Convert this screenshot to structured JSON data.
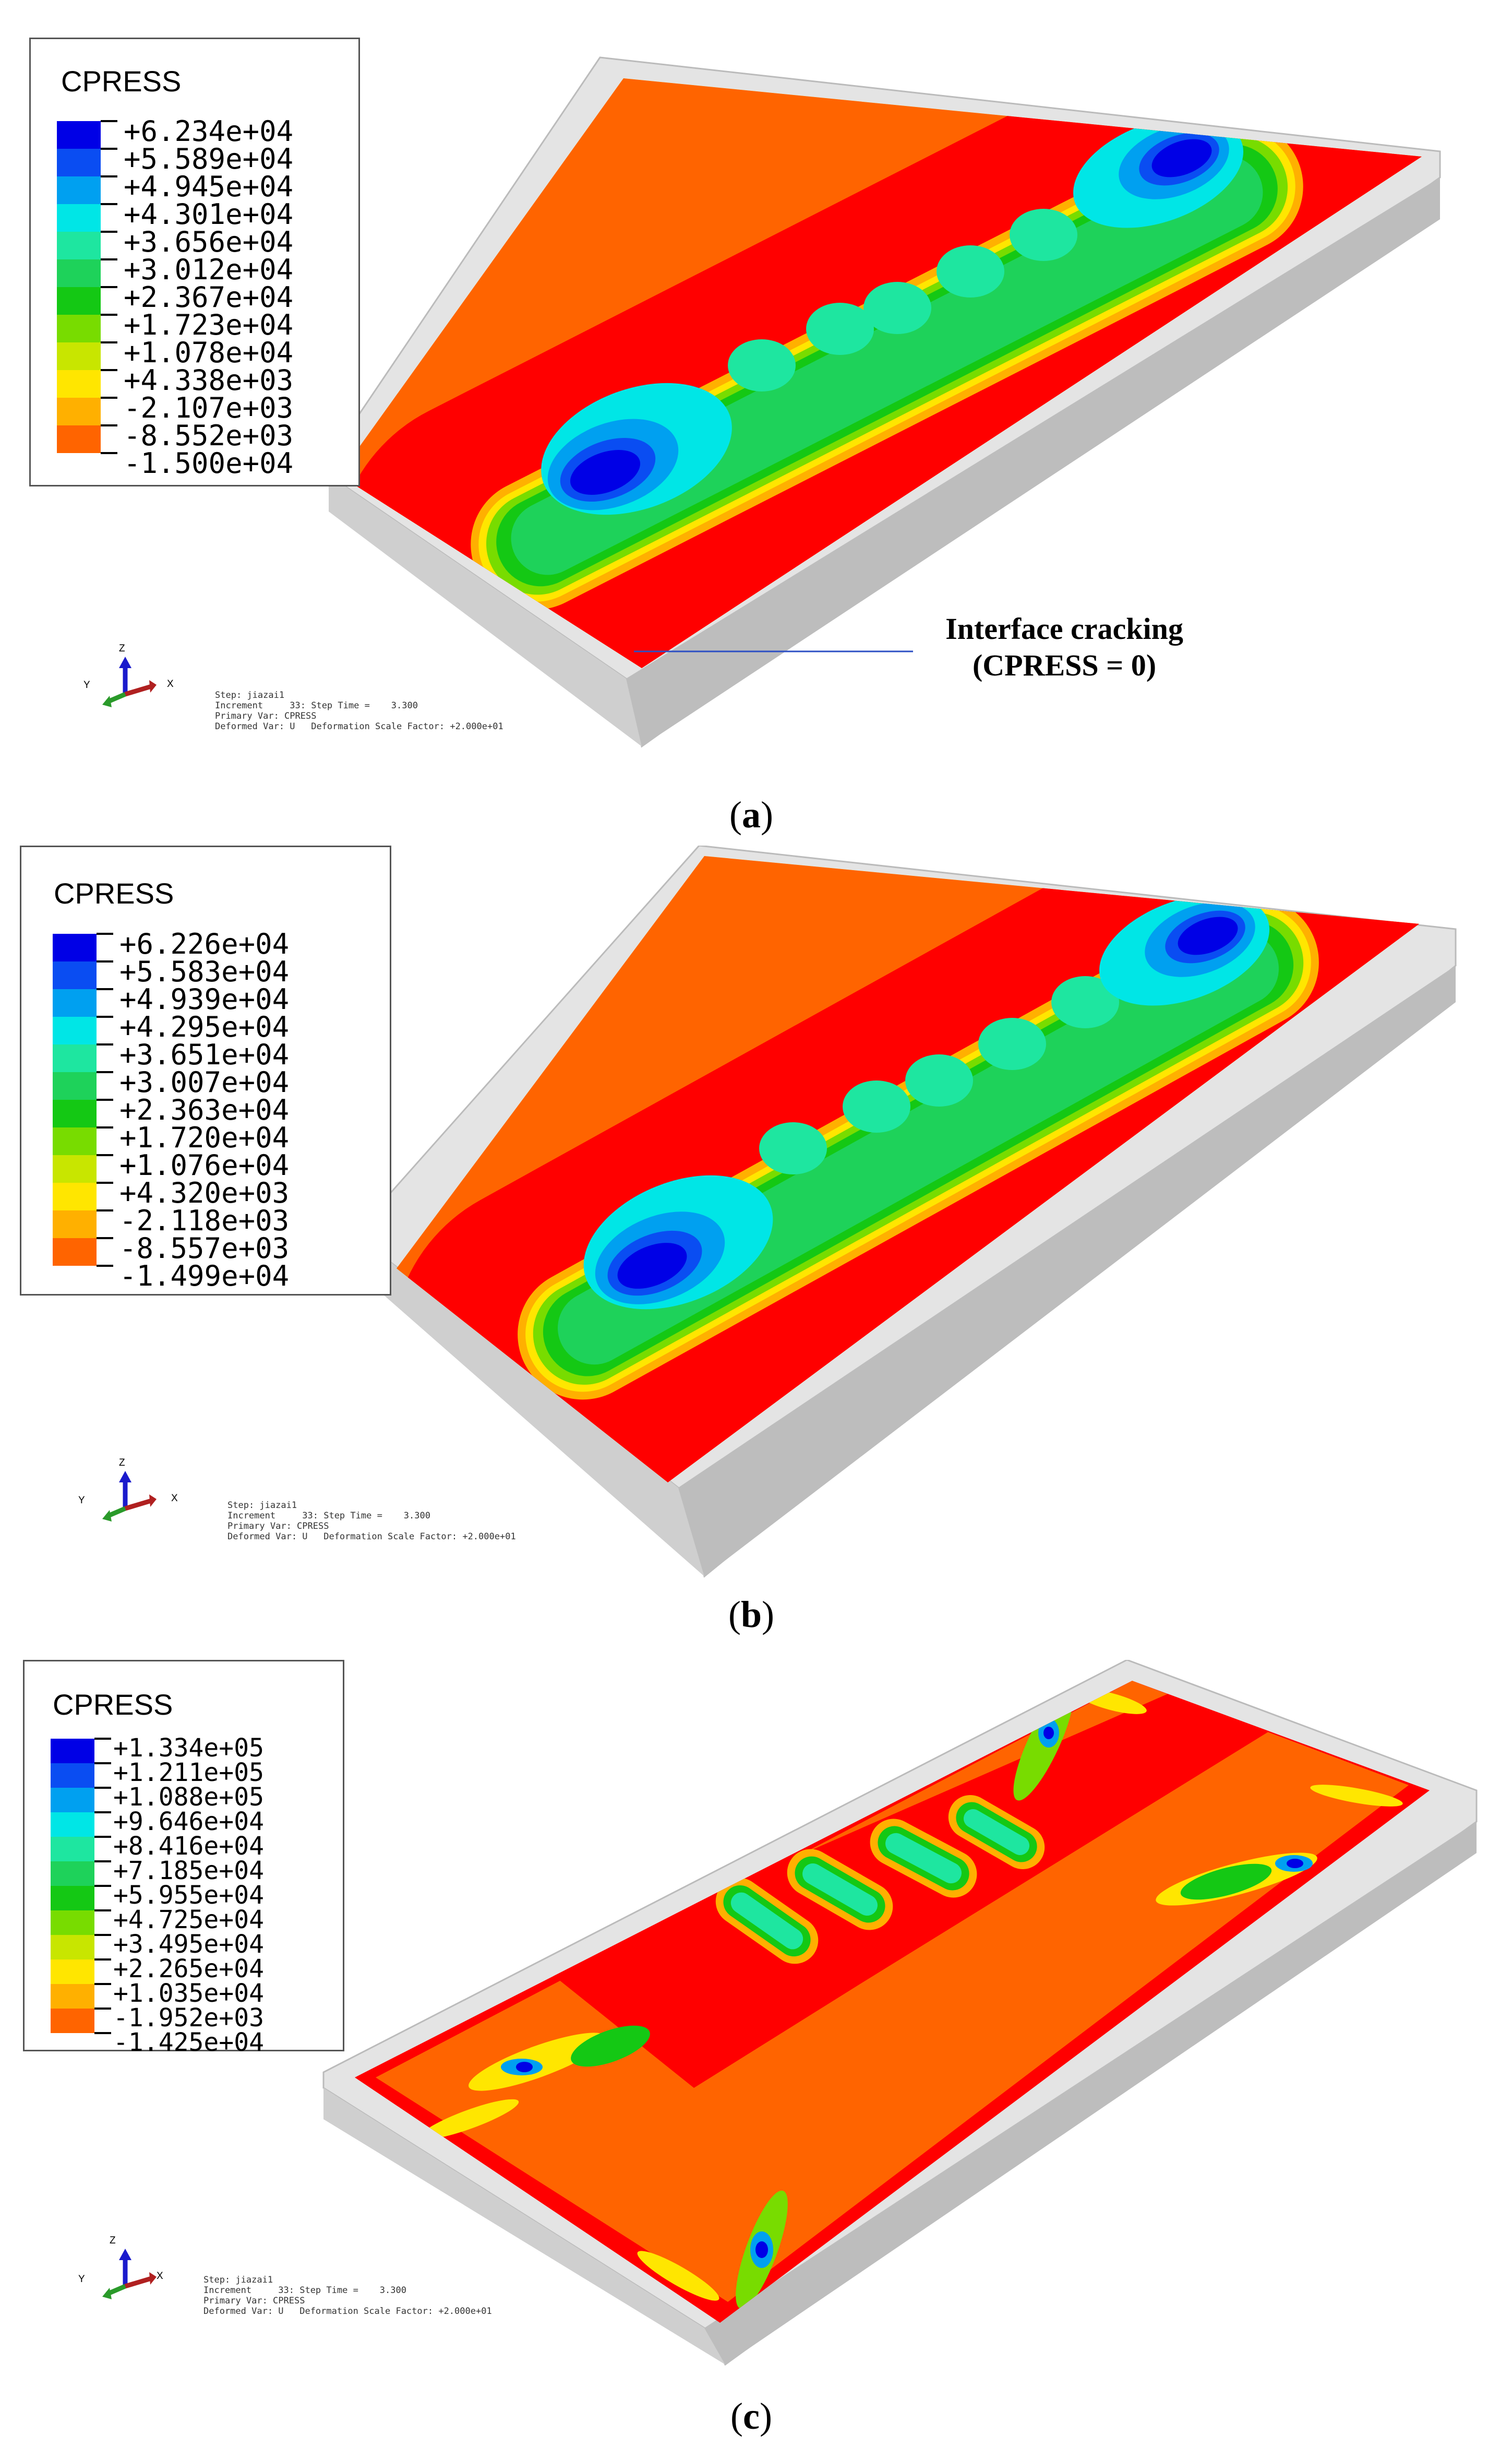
{
  "panels": [
    {
      "id": "a",
      "caption_letter": "a",
      "legend_title": "CPRESS",
      "legend_values": [
        "+6.234e+04",
        "+5.589e+04",
        "+4.945e+04",
        "+4.301e+04",
        "+3.656e+04",
        "+3.012e+04",
        "+2.367e+04",
        "+1.723e+04",
        "+1.078e+04",
        "+4.338e+03",
        "-2.107e+03",
        "-8.552e+03",
        "-1.500e+04"
      ],
      "step_info": "Step: jiazai1\nIncrement     33: Step Time =    3.300\nPrimary Var: CPRESS\nDeformed Var: U   Deformation Scale Factor: +2.000e+01",
      "annotation_line1": "Interface cracking",
      "annotation_line2": "(CPRESS = 0)"
    },
    {
      "id": "b",
      "caption_letter": "b",
      "legend_title": "CPRESS",
      "legend_values": [
        "+6.226e+04",
        "+5.583e+04",
        "+4.939e+04",
        "+4.295e+04",
        "+3.651e+04",
        "+3.007e+04",
        "+2.363e+04",
        "+1.720e+04",
        "+1.076e+04",
        "+4.320e+03",
        "-2.118e+03",
        "-8.557e+03",
        "-1.499e+04"
      ],
      "step_info": "Step: jiazai1\nIncrement     33: Step Time =    3.300\nPrimary Var: CPRESS\nDeformed Var: U   Deformation Scale Factor: +2.000e+01"
    },
    {
      "id": "c",
      "caption_letter": "c",
      "legend_title": "CPRESS",
      "legend_values": [
        "+1.334e+05",
        "+1.211e+05",
        "+1.088e+05",
        "+9.646e+04",
        "+8.416e+04",
        "+7.185e+04",
        "+5.955e+04",
        "+4.725e+04",
        "+3.495e+04",
        "+2.265e+04",
        "+1.035e+04",
        "-1.952e+03",
        "-1.425e+04"
      ],
      "step_info": "Step: jiazai1\nIncrement     33: Step Time =    3.300\nPrimary Var: CPRESS\nDeformed Var: U   Deformation Scale Factor: +2.000e+01"
    }
  ],
  "legend_colors": [
    "#0000e6",
    "#0a4df2",
    "#00a0f0",
    "#00e6e6",
    "#1ee6a0",
    "#1ed25a",
    "#14c814",
    "#78dc00",
    "#c8e600",
    "#ffe600",
    "#ffb000",
    "#ff6400",
    "#ff0000"
  ],
  "triad_labels": {
    "z": "Z",
    "y": "Y",
    "x": "X"
  }
}
